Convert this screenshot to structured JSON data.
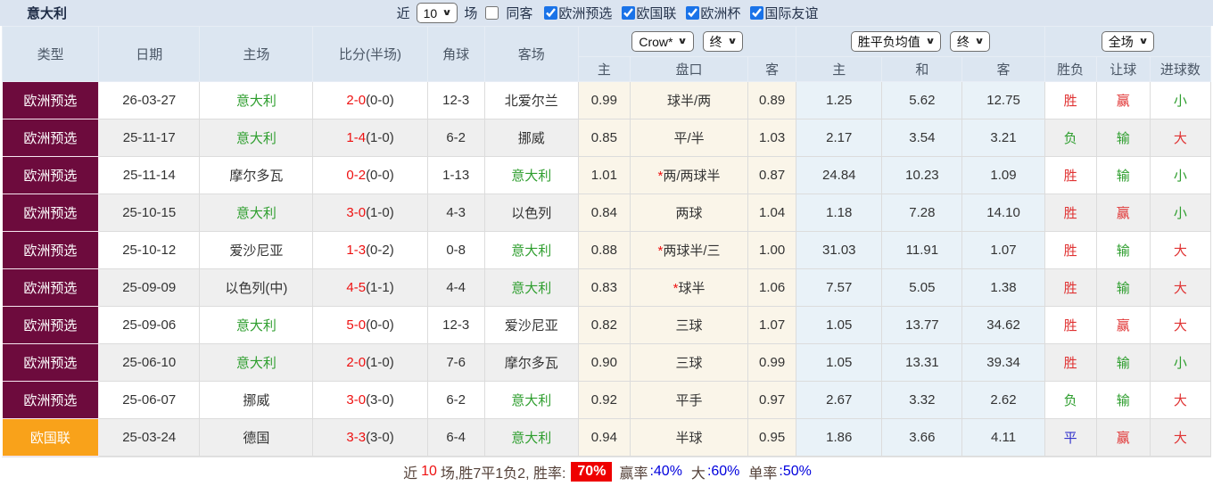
{
  "header": {
    "title": "意大利",
    "near_label": "近",
    "games_count": "10",
    "games_label": "场",
    "same_away_label": "同客",
    "same_away_checked": false,
    "leagues": [
      {
        "label": "欧洲预选",
        "checked": true
      },
      {
        "label": "欧国联",
        "checked": true
      },
      {
        "label": "欧洲杯",
        "checked": true
      },
      {
        "label": "国际友谊",
        "checked": true
      }
    ]
  },
  "table": {
    "main_headers": [
      "类型",
      "日期",
      "主场",
      "比分(半场)",
      "角球",
      "客场"
    ],
    "sub_headers": [
      "主",
      "盘口",
      "客",
      "主",
      "和",
      "客",
      "胜负",
      "让球",
      "进球数"
    ],
    "dropdowns": {
      "odds_company": "Crow*",
      "odds_time": "终",
      "avg_metric": "胜平负均值",
      "avg_time": "终",
      "scope": "全场"
    },
    "rows": [
      {
        "league": "欧洲预选",
        "league_color": "#6d0b3d",
        "date": "26-03-27",
        "home": "意大利",
        "home_is_team": true,
        "score": "2-0",
        "half": "(0-0)",
        "corners": "12-3",
        "away": "北爱尔兰",
        "away_is_team": false,
        "odds_home": "0.99",
        "handicap_star": "",
        "handicap": "球半/两",
        "odds_away": "0.89",
        "avg_win": "1.25",
        "avg_draw": "5.62",
        "avg_lose": "12.75",
        "outcome": "胜",
        "outcome_color": "red",
        "handicap_outcome": "赢",
        "handicap_outcome_color": "red",
        "goals_outcome": "小",
        "goals_outcome_color": "green"
      },
      {
        "league": "欧洲预选",
        "league_color": "#6d0b3d",
        "date": "25-11-17",
        "home": "意大利",
        "home_is_team": true,
        "score": "1-4",
        "half": "(1-0)",
        "corners": "6-2",
        "away": "挪威",
        "away_is_team": false,
        "odds_home": "0.85",
        "handicap_star": "",
        "handicap": "平/半",
        "odds_away": "1.03",
        "avg_win": "2.17",
        "avg_draw": "3.54",
        "avg_lose": "3.21",
        "outcome": "负",
        "outcome_color": "green",
        "handicap_outcome": "输",
        "handicap_outcome_color": "green",
        "goals_outcome": "大",
        "goals_outcome_color": "red"
      },
      {
        "league": "欧洲预选",
        "league_color": "#6d0b3d",
        "date": "25-11-14",
        "home": "摩尔多瓦",
        "home_is_team": false,
        "score": "0-2",
        "half": "(0-0)",
        "corners": "1-13",
        "away": "意大利",
        "away_is_team": true,
        "odds_home": "1.01",
        "handicap_star": "*",
        "handicap": "两/两球半",
        "odds_away": "0.87",
        "avg_win": "24.84",
        "avg_draw": "10.23",
        "avg_lose": "1.09",
        "outcome": "胜",
        "outcome_color": "red",
        "handicap_outcome": "输",
        "handicap_outcome_color": "green",
        "goals_outcome": "小",
        "goals_outcome_color": "green"
      },
      {
        "league": "欧洲预选",
        "league_color": "#6d0b3d",
        "date": "25-10-15",
        "home": "意大利",
        "home_is_team": true,
        "score": "3-0",
        "half": "(1-0)",
        "corners": "4-3",
        "away": "以色列",
        "away_is_team": false,
        "odds_home": "0.84",
        "handicap_star": "",
        "handicap": "两球",
        "odds_away": "1.04",
        "avg_win": "1.18",
        "avg_draw": "7.28",
        "avg_lose": "14.10",
        "outcome": "胜",
        "outcome_color": "red",
        "handicap_outcome": "赢",
        "handicap_outcome_color": "red",
        "goals_outcome": "小",
        "goals_outcome_color": "green"
      },
      {
        "league": "欧洲预选",
        "league_color": "#6d0b3d",
        "date": "25-10-12",
        "home": "爱沙尼亚",
        "home_is_team": false,
        "score": "1-3",
        "half": "(0-2)",
        "corners": "0-8",
        "away": "意大利",
        "away_is_team": true,
        "odds_home": "0.88",
        "handicap_star": "*",
        "handicap": "两球半/三",
        "odds_away": "1.00",
        "avg_win": "31.03",
        "avg_draw": "11.91",
        "avg_lose": "1.07",
        "outcome": "胜",
        "outcome_color": "red",
        "handicap_outcome": "输",
        "handicap_outcome_color": "green",
        "goals_outcome": "大",
        "goals_outcome_color": "red"
      },
      {
        "league": "欧洲预选",
        "league_color": "#6d0b3d",
        "date": "25-09-09",
        "home": "以色列(中)",
        "home_is_team": false,
        "score": "4-5",
        "half": "(1-1)",
        "corners": "4-4",
        "away": "意大利",
        "away_is_team": true,
        "odds_home": "0.83",
        "handicap_star": "*",
        "handicap": "球半",
        "odds_away": "1.06",
        "avg_win": "7.57",
        "avg_draw": "5.05",
        "avg_lose": "1.38",
        "outcome": "胜",
        "outcome_color": "red",
        "handicap_outcome": "输",
        "handicap_outcome_color": "green",
        "goals_outcome": "大",
        "goals_outcome_color": "red"
      },
      {
        "league": "欧洲预选",
        "league_color": "#6d0b3d",
        "date": "25-09-06",
        "home": "意大利",
        "home_is_team": true,
        "score": "5-0",
        "half": "(0-0)",
        "corners": "12-3",
        "away": "爱沙尼亚",
        "away_is_team": false,
        "odds_home": "0.82",
        "handicap_star": "",
        "handicap": "三球",
        "odds_away": "1.07",
        "avg_win": "1.05",
        "avg_draw": "13.77",
        "avg_lose": "34.62",
        "outcome": "胜",
        "outcome_color": "red",
        "handicap_outcome": "赢",
        "handicap_outcome_color": "red",
        "goals_outcome": "大",
        "goals_outcome_color": "red"
      },
      {
        "league": "欧洲预选",
        "league_color": "#6d0b3d",
        "date": "25-06-10",
        "home": "意大利",
        "home_is_team": true,
        "score": "2-0",
        "half": "(1-0)",
        "corners": "7-6",
        "away": "摩尔多瓦",
        "away_is_team": false,
        "odds_home": "0.90",
        "handicap_star": "",
        "handicap": "三球",
        "odds_away": "0.99",
        "avg_win": "1.05",
        "avg_draw": "13.31",
        "avg_lose": "39.34",
        "outcome": "胜",
        "outcome_color": "red",
        "handicap_outcome": "输",
        "handicap_outcome_color": "green",
        "goals_outcome": "小",
        "goals_outcome_color": "green"
      },
      {
        "league": "欧洲预选",
        "league_color": "#6d0b3d",
        "date": "25-06-07",
        "home": "挪威",
        "home_is_team": false,
        "score": "3-0",
        "half": "(3-0)",
        "corners": "6-2",
        "away": "意大利",
        "away_is_team": true,
        "odds_home": "0.92",
        "handicap_star": "",
        "handicap": "平手",
        "odds_away": "0.97",
        "avg_win": "2.67",
        "avg_draw": "3.32",
        "avg_lose": "2.62",
        "outcome": "负",
        "outcome_color": "green",
        "handicap_outcome": "输",
        "handicap_outcome_color": "green",
        "goals_outcome": "大",
        "goals_outcome_color": "red"
      },
      {
        "league": "欧国联",
        "league_color": "#f9a21a",
        "date": "25-03-24",
        "home": "德国",
        "home_is_team": false,
        "score": "3-3",
        "half": "(3-0)",
        "corners": "6-4",
        "away": "意大利",
        "away_is_team": true,
        "odds_home": "0.94",
        "handicap_star": "",
        "handicap": "半球",
        "odds_away": "0.95",
        "avg_win": "1.86",
        "avg_draw": "3.66",
        "avg_lose": "4.11",
        "outcome": "平",
        "outcome_color": "blue",
        "handicap_outcome": "赢",
        "handicap_outcome_color": "red",
        "goals_outcome": "大",
        "goals_outcome_color": "red"
      }
    ]
  },
  "footer": {
    "near": "近",
    "count": "10",
    "middle": "场,胜7平1负2, 胜率:",
    "rate_badge": "70%",
    "win_label": "赢率",
    "win_value": ":40%",
    "big_label": "大",
    "big_value": ":60%",
    "single_label": "单率",
    "single_value": ":50%"
  },
  "colors": {
    "qualifier_badge": "#6d0b3d",
    "nations_league_badge": "#f9a21a",
    "team_green": "#2e9e2e",
    "score_red": "#ee1111",
    "result_red": "#e03333",
    "result_green": "#2e9e2e",
    "result_blue": "#3333cc",
    "rate_badge_bg": "#ee0000",
    "footer_value_blue": "#0000dd",
    "odds_bg_cream": "#faf5e9",
    "avg_bg_blue": "#e9f2f8",
    "topbar_bg": "#dbe4f0"
  }
}
